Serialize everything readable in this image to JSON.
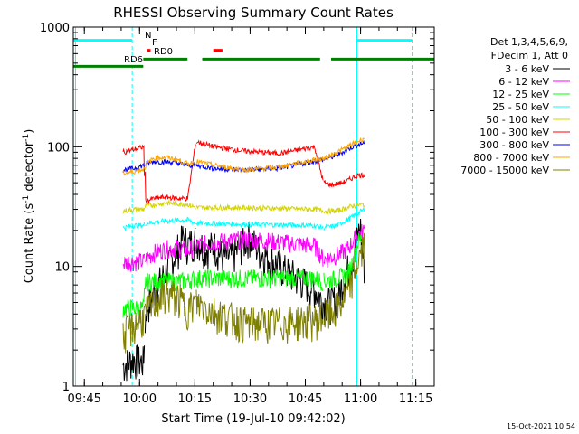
{
  "chart_data": {
    "type": "line",
    "title": "RHESSI Observing Summary Count Rates",
    "xlabel": "Start Time (19-Jul-10 09:42:02)",
    "ylabel_main": "Count Rate (s",
    "ylabel_sup1": "-1",
    "ylabel_mid": " detector",
    "ylabel_sup2": "-1",
    "ylabel_end": ")",
    "x_unit": "minutes since 09:42:02 (shown as clock time on axis)",
    "xlim": [
      0,
      98
    ],
    "ylim": [
      1,
      1000
    ],
    "yscale": "log",
    "x_ticks": [
      {
        "m": 3,
        "label": "09:45"
      },
      {
        "m": 18,
        "label": "10:00"
      },
      {
        "m": 33,
        "label": "10:15"
      },
      {
        "m": 48,
        "label": "10:30"
      },
      {
        "m": 63,
        "label": "10:45"
      },
      {
        "m": 78,
        "label": "11:00"
      },
      {
        "m": 93,
        "label": "11:15"
      }
    ],
    "y_ticks": [
      {
        "v": 1,
        "label": "1"
      },
      {
        "v": 10,
        "label": "10"
      },
      {
        "v": 100,
        "label": "100"
      },
      {
        "v": 1000,
        "label": "1000"
      }
    ],
    "legend_header": [
      "Det 1,3,4,5,6,9,",
      "FDecim 1, Att 0"
    ],
    "legend_position": "right",
    "series": [
      {
        "name": "3 - 6 keV",
        "color": "#000000",
        "dx": [
          0,
          0.5,
          1,
          1.5,
          1.9,
          2,
          3.2,
          4,
          7,
          9,
          10.5,
          11.5,
          12.5,
          14.5,
          15.5,
          16.5,
          17.5,
          18.5,
          20.5,
          21.5,
          24,
          26,
          28,
          29,
          30.5,
          32,
          34,
          35,
          36,
          36.5,
          37.5,
          39,
          40,
          41,
          42,
          43,
          44,
          44.5
        ],
        "y": [
          1.5,
          1.6,
          1.7,
          1.6,
          1.6,
          4.5,
          5,
          6,
          9,
          12,
          15,
          18,
          15,
          17,
          14,
          15,
          12,
          12,
          18,
          14,
          10,
          8,
          6.5,
          5,
          5,
          5,
          5.5,
          6,
          7,
          8,
          9,
          10,
          12,
          14,
          18,
          22,
          12,
          10
        ]
      },
      {
        "name": "6 - 12 keV",
        "color": "#ff00ff",
        "dx": [
          0,
          0.5,
          1,
          1.9,
          2,
          4,
          7,
          10,
          12.5,
          14.5,
          16.5,
          20.5,
          24,
          28,
          29,
          32,
          36,
          38,
          40,
          42,
          44.5
        ],
        "y": [
          10.5,
          11,
          11,
          11,
          11.5,
          13,
          14,
          14.5,
          13.5,
          15,
          16,
          17,
          16,
          15,
          11.5,
          12,
          13,
          14,
          16,
          18.5,
          20
        ]
      },
      {
        "name": "12 - 25 keV",
        "color": "#00ff00",
        "dx": [
          0,
          1,
          1.9,
          2,
          7,
          12.5,
          14.5,
          20,
          28,
          29,
          34,
          38,
          40,
          42,
          44.5
        ],
        "y": [
          4.5,
          4.5,
          4.5,
          7.5,
          7.5,
          7.6,
          8,
          8,
          8,
          7.5,
          8,
          8.5,
          11,
          16,
          18
        ]
      },
      {
        "name": "25 - 50 keV",
        "color": "#00ffff",
        "dx": [
          0,
          1,
          1.9,
          2,
          7,
          12.5,
          14.5,
          20,
          28,
          29,
          34,
          40,
          44.5
        ],
        "y": [
          21,
          22,
          22,
          23,
          24,
          24.5,
          23,
          22.5,
          22,
          21,
          22,
          26,
          30
        ]
      },
      {
        "name": "50 - 100 keV",
        "color": "#d4d400",
        "dx": [
          0,
          1,
          1.9,
          2,
          7,
          12.5,
          14.5,
          20,
          28,
          29,
          34,
          40,
          44.5
        ],
        "y": [
          29,
          30,
          30,
          32,
          34,
          33,
          31,
          31,
          30,
          29,
          29,
          32,
          33
        ]
      },
      {
        "name": "100 - 300 keV",
        "color": "#ff0000",
        "dx": [
          0,
          1,
          1.9,
          2,
          4,
          7,
          10,
          12.5,
          14.5,
          16.5,
          20,
          24,
          28,
          29,
          32,
          36,
          38,
          40,
          42,
          44.5
        ],
        "y": [
          90,
          95,
          100,
          35,
          37,
          38,
          37,
          37,
          110,
          100,
          92,
          88,
          100,
          50,
          48,
          50,
          52,
          55,
          58,
          58
        ]
      },
      {
        "name": "300 - 800 keV",
        "color": "#0000ff",
        "dx": [
          0,
          1,
          1.9,
          2,
          4,
          7,
          10,
          12.5,
          14.5,
          16.5,
          20,
          24,
          28,
          29,
          34,
          40,
          44.5
        ],
        "y": [
          64,
          66,
          70,
          72,
          75,
          75,
          73,
          70,
          70,
          66,
          64,
          66,
          76,
          78,
          85,
          100,
          108
        ]
      },
      {
        "name": "800 - 7000 keV",
        "color": "#ffa500",
        "dx": [
          0,
          1,
          1.9,
          2,
          4,
          7,
          10,
          12.5,
          14.5,
          16.5,
          20,
          24,
          28,
          29,
          34,
          40,
          44.5
        ],
        "y": [
          60,
          62,
          65,
          70,
          80,
          82,
          78,
          72,
          75,
          70,
          64,
          68,
          78,
          80,
          90,
          105,
          118
        ]
      },
      {
        "name": "7000 - 15000 keV",
        "color": "#808000",
        "dx": [
          0,
          0.5,
          1,
          1.5,
          1.9,
          2,
          4,
          7,
          10,
          12.5,
          14.5,
          16.5,
          20,
          24,
          28,
          29,
          31,
          33,
          36,
          38,
          40,
          42,
          44.5
        ],
        "y": [
          2.6,
          3,
          3.2,
          3.6,
          3.8,
          4,
          5,
          6,
          5.5,
          4.5,
          5,
          4.2,
          3.4,
          3.4,
          3.6,
          3.8,
          4,
          4.3,
          5,
          6,
          8,
          11,
          15
        ]
      }
    ],
    "flag_lines": [
      {
        "label": "N",
        "color": "#00ffff",
        "y": 775,
        "segments": [
          [
            0,
            16
          ],
          [
            77,
            92
          ]
        ]
      },
      {
        "label": "F",
        "color": "#ff0000",
        "y": 640,
        "segments": [
          [
            20,
            21
          ],
          [
            38,
            40.5
          ]
        ]
      },
      {
        "label": "RD0",
        "color": "#008000",
        "y": 540,
        "segments": [
          [
            19,
            31
          ],
          [
            35,
            67
          ],
          [
            70,
            98
          ]
        ]
      },
      {
        "label": "RD6",
        "color": "#008000",
        "y": 470,
        "segments": [
          [
            0,
            19
          ]
        ]
      }
    ],
    "vertical_markers": [
      {
        "color": "#00ffff",
        "style": "solid",
        "m": 0.6
      },
      {
        "color": "#00ffff",
        "style": "dashed",
        "m": 16
      },
      {
        "color": "#00ffff",
        "style": "solid",
        "m": 77
      },
      {
        "color": "#00ffff",
        "style": "dashed",
        "m": 92
      }
    ],
    "segments": [
      [
        13.5,
        19.3
      ],
      [
        19.5,
        33.2
      ],
      [
        33.4,
        67.8
      ],
      [
        68.0,
        79
      ]
    ]
  },
  "footer": {
    "timestamp": "15-Oct-2021 10:54"
  }
}
